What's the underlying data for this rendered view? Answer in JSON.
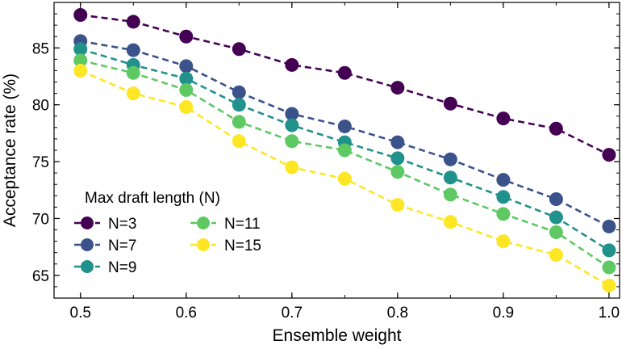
{
  "chart_data": {
    "type": "line",
    "title": "",
    "xlabel": "Ensemble weight",
    "ylabel": "Acceptance rate (%)",
    "xlim": [
      0.475,
      1.01
    ],
    "ylim": [
      63,
      89
    ],
    "xticks": [
      0.5,
      0.6,
      0.7,
      0.8,
      0.9,
      1.0
    ],
    "xtick_labels": [
      "0.5",
      "0.6",
      "0.7",
      "0.8",
      "0.9",
      "1.0"
    ],
    "yticks": [
      65,
      70,
      75,
      80,
      85
    ],
    "ytick_labels": [
      "65",
      "70",
      "75",
      "80",
      "85"
    ],
    "grid": false,
    "line_style": "dashed",
    "marker": "circle",
    "legend": {
      "title": "Max draft length (N)",
      "placement": "lower-left",
      "columns": 2
    },
    "x": [
      0.5,
      0.55,
      0.6,
      0.65,
      0.7,
      0.75,
      0.8,
      0.85,
      0.9,
      0.95,
      1.0
    ],
    "series": [
      {
        "name": "N=3",
        "color": "#440154",
        "values": [
          87.9,
          87.3,
          86.0,
          84.9,
          83.5,
          82.8,
          81.5,
          80.1,
          78.8,
          77.9,
          75.6
        ]
      },
      {
        "name": "N=7",
        "color": "#3b528b",
        "values": [
          85.6,
          84.8,
          83.4,
          81.1,
          79.2,
          78.1,
          76.7,
          75.2,
          73.4,
          71.7,
          69.3
        ]
      },
      {
        "name": "N=9",
        "color": "#21918c",
        "values": [
          84.9,
          83.5,
          82.3,
          80.0,
          78.2,
          76.7,
          75.3,
          73.6,
          71.9,
          70.1,
          67.2
        ]
      },
      {
        "name": "N=11",
        "color": "#5ec962",
        "values": [
          83.9,
          82.8,
          81.3,
          78.5,
          76.8,
          76.0,
          74.1,
          72.1,
          70.4,
          68.8,
          65.7
        ]
      },
      {
        "name": "N=15",
        "color": "#fde725",
        "values": [
          83.0,
          81.0,
          79.8,
          76.8,
          74.5,
          73.5,
          71.2,
          69.7,
          68.0,
          66.8,
          64.1
        ]
      }
    ]
  }
}
